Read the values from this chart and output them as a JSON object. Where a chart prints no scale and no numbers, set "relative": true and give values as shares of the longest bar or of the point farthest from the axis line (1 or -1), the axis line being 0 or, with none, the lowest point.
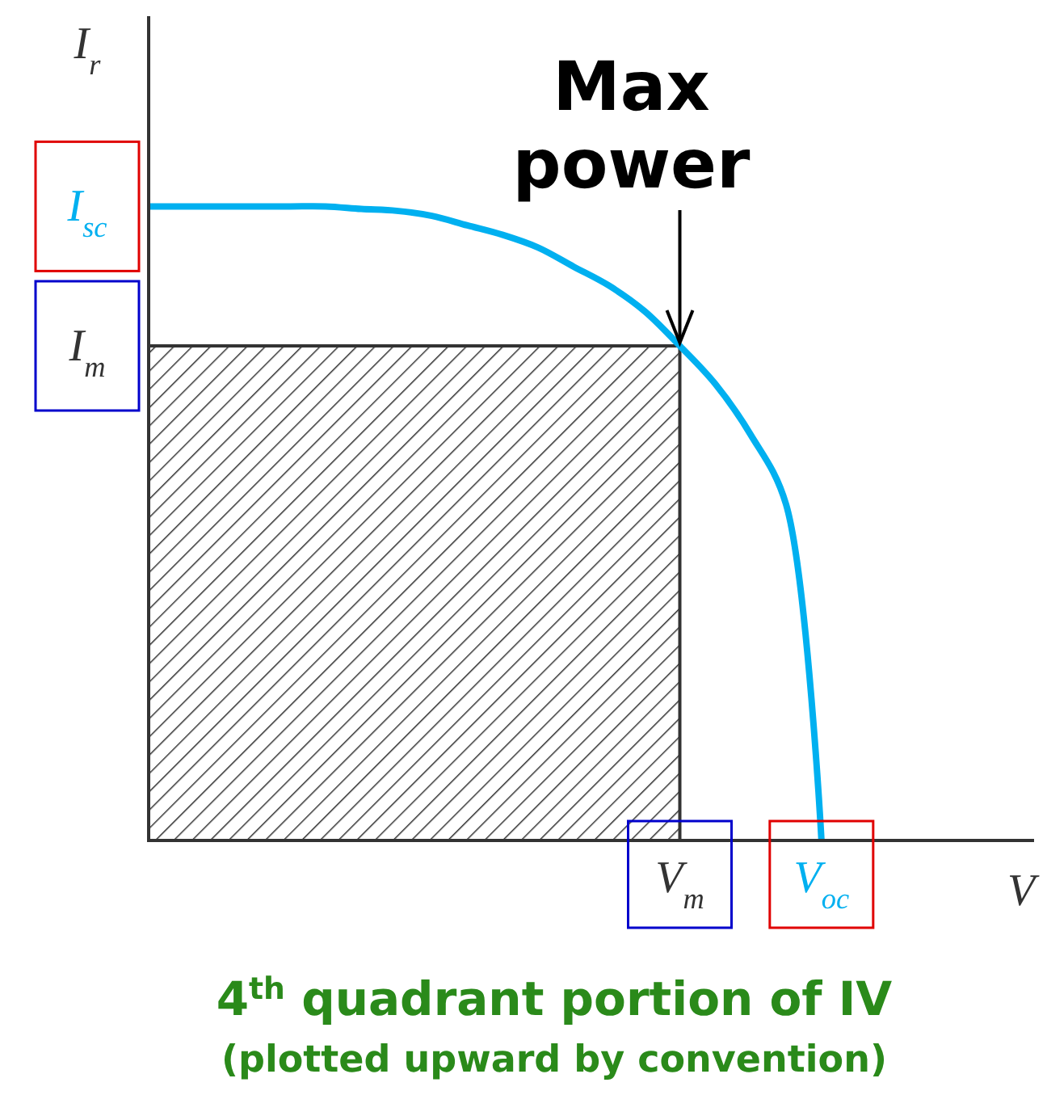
{
  "chart_data": {
    "type": "line",
    "relative": true,
    "title": "4$^{th}$ quadrant portion of IV",
    "subtitle": "(plotted upward by convention)",
    "xlabel": "V",
    "ylabel": "I$_{r}$",
    "categories": [
      null,
      null,
      null,
      null,
      null,
      null,
      null,
      null,
      null,
      null,
      null,
      null,
      null,
      null,
      null,
      null,
      null,
      null,
      null,
      null,
      null,
      null,
      null,
      null,
      null
    ],
    "series": [
      {
        "type": "area",
        "color": "#333333",
        "values": [
          0.78,
          0.78,
          0.78,
          0.78,
          0.78,
          0.78,
          0.78,
          0.78,
          0.78,
          0.78,
          0.78,
          0.78,
          0.78,
          0.78,
          0.78,
          0.78,
          null,
          null,
          null,
          null,
          null,
          null,
          null,
          null,
          null
        ]
      },
      {
        "color": "#00b0f0",
        "values": [
          1,
          1,
          1,
          1,
          1,
          1,
          0.996,
          0.993,
          0.985,
          0.97,
          0.955,
          0.935,
          0.905,
          0.875,
          0.835,
          0.78,
          0.72,
          0.64,
          0.53,
          0,
          null,
          null,
          null,
          null,
          null
        ]
      }
    ],
    "annotations": [
      "Max power",
      "I$_{sc}$",
      "I$_{m}$",
      "V$_{m}$",
      "V$_{oc}$"
    ]
  }
}
